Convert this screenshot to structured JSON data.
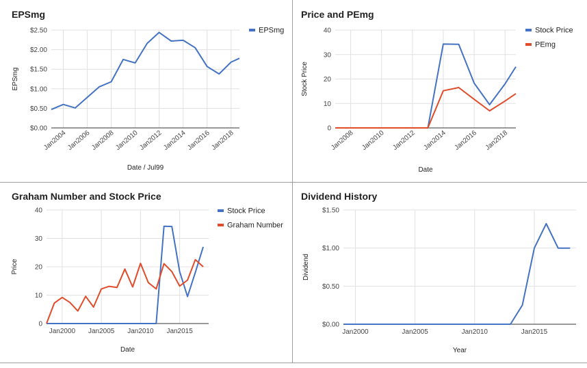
{
  "chart_data": [
    {
      "type": "line",
      "title": "EPSmg",
      "xlabel": "Date / Jul99",
      "ylabel": "EPSmg",
      "y_ticks": [
        "$0.00",
        "$0.50",
        "$1.00",
        "$1.50",
        "$2.00",
        "$2.50"
      ],
      "x_ticks": [
        "Jan2004",
        "Jan2006",
        "Jan2008",
        "Jan2010",
        "Jan2012",
        "Jan2014",
        "Jan2016",
        "Jan2018"
      ],
      "x_range": [
        2003,
        2018.7
      ],
      "ylim": [
        0,
        2.5
      ],
      "legend_position": "right",
      "series": [
        {
          "name": "EPSmg",
          "color": "#4472c4",
          "x": [
            2003.0,
            2004.0,
            2005.0,
            2006.0,
            2007.0,
            2008.0,
            2009.0,
            2010.0,
            2011.0,
            2012.0,
            2013.0,
            2014.0,
            2015.0,
            2016.0,
            2017.0,
            2018.0,
            2018.7
          ],
          "y": [
            0.47,
            0.6,
            0.51,
            0.78,
            1.05,
            1.18,
            1.75,
            1.66,
            2.16,
            2.44,
            2.22,
            2.24,
            2.05,
            1.57,
            1.38,
            1.68,
            1.78
          ]
        }
      ]
    },
    {
      "type": "line",
      "title": "Price and PEmg",
      "xlabel": "Date",
      "ylabel": "Stock Price",
      "y_ticks": [
        "0",
        "10",
        "20",
        "30",
        "40"
      ],
      "x_ticks": [
        "Jan2008",
        "Jan2010",
        "Jan2012",
        "Jan2014",
        "Jan2016",
        "Jan2018"
      ],
      "x_range": [
        2007,
        2018.7
      ],
      "ylim": [
        0,
        40
      ],
      "legend_position": "right",
      "series": [
        {
          "name": "Stock Price",
          "color": "#4472c4",
          "x": [
            2007.0,
            2008.0,
            2009.0,
            2010.0,
            2011.0,
            2012.0,
            2013.0,
            2014.0,
            2015.0,
            2016.0,
            2017.0,
            2018.0,
            2018.7
          ],
          "y": [
            0,
            0,
            0,
            0,
            0,
            0,
            0,
            34.3,
            34.2,
            18.3,
            9.5,
            18.0,
            25.0
          ]
        },
        {
          "name": "PEmg",
          "color": "#e04b2a",
          "x": [
            2007.0,
            2008.0,
            2009.0,
            2010.0,
            2011.0,
            2012.0,
            2013.0,
            2014.0,
            2015.0,
            2016.0,
            2017.0,
            2018.0,
            2018.7
          ],
          "y": [
            0,
            0,
            0,
            0,
            0,
            0,
            0,
            15.2,
            16.5,
            11.7,
            7.0,
            11.0,
            14.0
          ]
        }
      ]
    },
    {
      "type": "line",
      "title": "Graham Number and Stock Price",
      "xlabel": "Date",
      "ylabel": "Price",
      "y_ticks": [
        "0",
        "10",
        "20",
        "30",
        "40"
      ],
      "x_ticks": [
        "Jan2000",
        "Jan2005",
        "Jan2010",
        "Jan2015"
      ],
      "x_range": [
        1998,
        2018.7
      ],
      "ylim": [
        0,
        40
      ],
      "legend_position": "right",
      "series": [
        {
          "name": "Stock Price",
          "color": "#4472c4",
          "x": [
            1998.0,
            2012.0,
            2013.0,
            2014.0,
            2015.0,
            2016.0,
            2017.0,
            2018.0
          ],
          "y": [
            0,
            0,
            34.3,
            34.2,
            18.3,
            9.5,
            18.0,
            27.0
          ]
        },
        {
          "name": "Graham Number",
          "color": "#e04b2a",
          "x": [
            1998.0,
            1999.0,
            2000.0,
            2001.0,
            2002.0,
            2003.0,
            2004.0,
            2005.0,
            2006.0,
            2007.0,
            2008.0,
            2009.0,
            2010.0,
            2011.0,
            2012.0,
            2013.0,
            2014.0,
            2015.0,
            2016.0,
            2017.0,
            2018.0
          ],
          "y": [
            0,
            7.2,
            9.2,
            7.4,
            4.4,
            9.6,
            5.8,
            12.2,
            13.1,
            12.7,
            19.2,
            12.9,
            21.2,
            14.4,
            12.2,
            21.1,
            18.3,
            13.2,
            15.3,
            22.5,
            20.0
          ]
        }
      ]
    },
    {
      "type": "line",
      "title": "Dividend History",
      "xlabel": "Year",
      "ylabel": "Dividend",
      "y_ticks": [
        "$0.00",
        "$0.50",
        "$1.00",
        "$1.50"
      ],
      "x_ticks": [
        "Jan2000",
        "Jan2005",
        "Jan2010",
        "Jan2015"
      ],
      "x_range": [
        1999,
        2018.5
      ],
      "ylim": [
        0,
        1.5
      ],
      "series": [
        {
          "color": "#4472c4",
          "x": [
            1999.0,
            2013.0,
            2014.0,
            2015.0,
            2016.0,
            2017.0,
            2018.0
          ],
          "y": [
            0,
            0,
            0.25,
            1.0,
            1.32,
            1.0,
            1.0
          ]
        }
      ]
    }
  ]
}
